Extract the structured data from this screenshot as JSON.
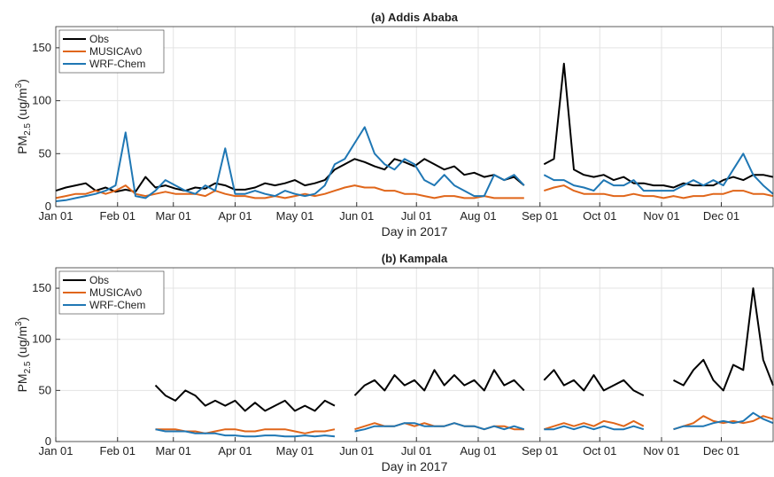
{
  "chart_data": [
    {
      "type": "line",
      "title": "(a) Addis Ababa",
      "xlabel": "Day in 2017",
      "ylabel": [
        "PM",
        "2.5",
        " (ug/m",
        "3",
        ")"
      ],
      "xlim": [
        0,
        360
      ],
      "xticks": [
        {
          "value": 0,
          "label": "Jan 01"
        },
        {
          "value": 31,
          "label": "Feb 01"
        },
        {
          "value": 59,
          "label": "Mar 01"
        },
        {
          "value": 90,
          "label": "Apr 01"
        },
        {
          "value": 120,
          "label": "May 01"
        },
        {
          "value": 151,
          "label": "Jun 01"
        },
        {
          "value": 181,
          "label": "Jul 01"
        },
        {
          "value": 212,
          "label": "Aug 01"
        },
        {
          "value": 243,
          "label": "Sep 01"
        },
        {
          "value": 273,
          "label": "Oct 01"
        },
        {
          "value": 304,
          "label": "Nov 01"
        },
        {
          "value": 334,
          "label": "Dec 01"
        }
      ],
      "ylim": [
        0,
        170
      ],
      "yticks": [
        0,
        50,
        100,
        150
      ],
      "grid": true,
      "legend": "upper-left",
      "x": [
        0,
        5,
        10,
        15,
        20,
        25,
        30,
        35,
        40,
        45,
        50,
        55,
        60,
        65,
        70,
        75,
        80,
        85,
        90,
        95,
        100,
        105,
        110,
        115,
        120,
        125,
        130,
        135,
        140,
        145,
        150,
        155,
        160,
        165,
        170,
        175,
        180,
        185,
        190,
        195,
        200,
        205,
        210,
        215,
        220,
        225,
        230,
        235,
        240,
        245,
        250,
        255,
        260,
        265,
        270,
        275,
        280,
        285,
        290,
        295,
        300,
        305,
        310,
        315,
        320,
        325,
        330,
        335,
        340,
        345,
        350,
        355,
        360
      ],
      "series": [
        {
          "name": "Obs",
          "color": "#000000",
          "values": [
            15,
            18,
            20,
            22,
            15,
            18,
            14,
            16,
            14,
            28,
            18,
            20,
            17,
            15,
            18,
            17,
            22,
            20,
            16,
            16,
            18,
            22,
            20,
            22,
            25,
            20,
            22,
            25,
            35,
            40,
            45,
            42,
            38,
            35,
            45,
            42,
            38,
            45,
            40,
            35,
            38,
            30,
            32,
            28,
            30,
            25,
            28,
            20,
            null,
            40,
            45,
            135,
            35,
            30,
            28,
            30,
            25,
            28,
            22,
            22,
            20,
            20,
            18,
            22,
            20,
            20,
            20,
            25,
            28,
            25,
            30,
            30,
            28
          ]
        },
        {
          "name": "MUSICAv0",
          "color": "#e0661a",
          "values": [
            8,
            10,
            12,
            12,
            15,
            12,
            15,
            20,
            12,
            10,
            12,
            14,
            12,
            12,
            12,
            10,
            15,
            12,
            10,
            10,
            8,
            8,
            10,
            8,
            10,
            12,
            10,
            12,
            15,
            18,
            20,
            18,
            18,
            15,
            15,
            12,
            12,
            10,
            8,
            10,
            10,
            8,
            8,
            10,
            8,
            8,
            8,
            8,
            null,
            15,
            18,
            20,
            15,
            12,
            12,
            12,
            10,
            10,
            12,
            10,
            10,
            8,
            10,
            8,
            10,
            10,
            12,
            12,
            15,
            15,
            12,
            12,
            10
          ]
        },
        {
          "name": "WRF-Chem",
          "color": "#1f77b4",
          "values": [
            5,
            6,
            8,
            10,
            12,
            15,
            20,
            70,
            10,
            8,
            15,
            25,
            20,
            15,
            12,
            20,
            15,
            55,
            12,
            12,
            15,
            12,
            10,
            15,
            12,
            10,
            12,
            20,
            40,
            45,
            60,
            75,
            50,
            40,
            35,
            45,
            40,
            25,
            20,
            30,
            20,
            15,
            10,
            10,
            30,
            25,
            30,
            20,
            null,
            30,
            25,
            25,
            20,
            18,
            15,
            25,
            20,
            20,
            25,
            15,
            15,
            15,
            15,
            20,
            25,
            20,
            25,
            20,
            35,
            50,
            30,
            20,
            12
          ]
        }
      ]
    },
    {
      "type": "line",
      "title": "(b) Kampala",
      "xlabel": "Day in 2017",
      "ylabel": [
        "PM",
        "2.5",
        " (ug/m",
        "3",
        ")"
      ],
      "xlim": [
        0,
        360
      ],
      "xticks": [
        {
          "value": 0,
          "label": "Jan 01"
        },
        {
          "value": 31,
          "label": "Feb 01"
        },
        {
          "value": 59,
          "label": "Mar 01"
        },
        {
          "value": 90,
          "label": "Apr 01"
        },
        {
          "value": 120,
          "label": "May 01"
        },
        {
          "value": 151,
          "label": "Jun 01"
        },
        {
          "value": 181,
          "label": "Jul 01"
        },
        {
          "value": 212,
          "label": "Aug 01"
        },
        {
          "value": 243,
          "label": "Sep 01"
        },
        {
          "value": 273,
          "label": "Oct 01"
        },
        {
          "value": 304,
          "label": "Nov 01"
        },
        {
          "value": 334,
          "label": "Dec 01"
        }
      ],
      "ylim": [
        0,
        170
      ],
      "yticks": [
        0,
        50,
        100,
        150
      ],
      "grid": true,
      "legend": "upper-left",
      "x": [
        0,
        5,
        10,
        15,
        20,
        25,
        30,
        35,
        40,
        45,
        50,
        55,
        60,
        65,
        70,
        75,
        80,
        85,
        90,
        95,
        100,
        105,
        110,
        115,
        120,
        125,
        130,
        135,
        140,
        145,
        150,
        155,
        160,
        165,
        170,
        175,
        180,
        185,
        190,
        195,
        200,
        205,
        210,
        215,
        220,
        225,
        230,
        235,
        240,
        245,
        250,
        255,
        260,
        265,
        270,
        275,
        280,
        285,
        290,
        295,
        300,
        305,
        310,
        315,
        320,
        325,
        330,
        335,
        340,
        345,
        350,
        355,
        360
      ],
      "series": [
        {
          "name": "Obs",
          "color": "#000000",
          "values": [
            null,
            null,
            null,
            null,
            null,
            null,
            null,
            null,
            null,
            null,
            55,
            45,
            40,
            50,
            45,
            35,
            40,
            35,
            40,
            30,
            38,
            30,
            35,
            40,
            30,
            35,
            30,
            40,
            35,
            null,
            45,
            55,
            60,
            50,
            65,
            55,
            60,
            50,
            70,
            55,
            65,
            55,
            60,
            50,
            70,
            55,
            60,
            50,
            null,
            60,
            70,
            55,
            60,
            50,
            65,
            50,
            55,
            60,
            50,
            45,
            null,
            null,
            60,
            55,
            70,
            80,
            60,
            50,
            75,
            70,
            150,
            80,
            55
          ]
        },
        {
          "name": "MUSICAv0",
          "color": "#e0661a",
          "values": [
            null,
            null,
            null,
            null,
            null,
            null,
            null,
            null,
            null,
            null,
            12,
            12,
            12,
            10,
            10,
            8,
            10,
            12,
            12,
            10,
            10,
            12,
            12,
            12,
            10,
            8,
            10,
            10,
            12,
            null,
            12,
            15,
            18,
            15,
            15,
            18,
            15,
            18,
            15,
            15,
            18,
            15,
            15,
            12,
            15,
            15,
            12,
            12,
            null,
            12,
            15,
            18,
            15,
            18,
            15,
            20,
            18,
            15,
            20,
            15,
            null,
            null,
            12,
            15,
            18,
            25,
            20,
            18,
            20,
            18,
            20,
            25,
            22
          ]
        },
        {
          "name": "WRF-Chem",
          "color": "#1f77b4",
          "values": [
            null,
            null,
            null,
            null,
            null,
            null,
            null,
            null,
            null,
            null,
            12,
            10,
            10,
            10,
            8,
            8,
            8,
            6,
            6,
            5,
            5,
            6,
            6,
            5,
            5,
            6,
            5,
            6,
            5,
            null,
            10,
            12,
            15,
            15,
            15,
            18,
            18,
            15,
            15,
            15,
            18,
            15,
            15,
            12,
            15,
            12,
            15,
            12,
            null,
            12,
            12,
            15,
            12,
            15,
            12,
            15,
            12,
            12,
            15,
            12,
            null,
            null,
            12,
            15,
            15,
            15,
            18,
            20,
            18,
            20,
            28,
            22,
            18
          ]
        }
      ]
    }
  ]
}
